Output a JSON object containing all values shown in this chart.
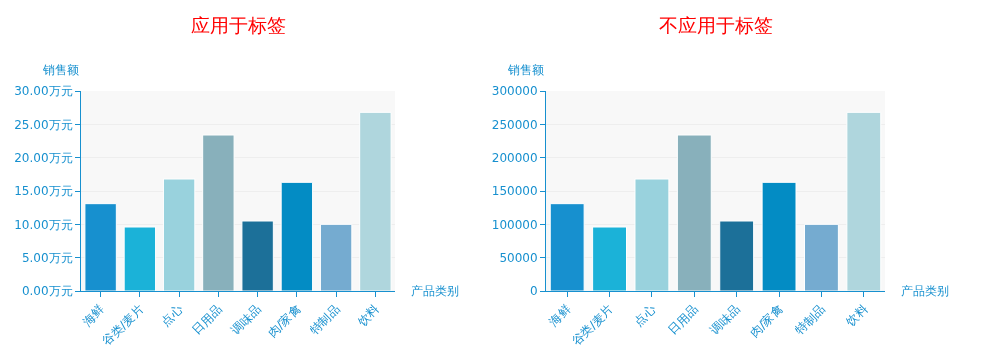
{
  "chart_data": [
    {
      "type": "bar",
      "title": "应用于标签",
      "xlabel": "产品类别",
      "ylabel": "销售额",
      "categories": [
        "海鲜",
        "谷类/麦片",
        "点心",
        "日用品",
        "调味品",
        "肉/家禽",
        "特制品",
        "饮料"
      ],
      "values": [
        13.1,
        9.6,
        16.8,
        23.4,
        10.5,
        16.3,
        10.0,
        26.8
      ],
      "colors": [
        "#1790cf",
        "#1bb2d8",
        "#99d2dd",
        "#88b0bb",
        "#1c7099",
        "#038cc4",
        "#75abd0",
        "#afd6dd"
      ],
      "ylim": [
        0,
        30
      ],
      "yticks": [
        {
          "value": 0,
          "label": "0.00万元"
        },
        {
          "value": 5,
          "label": "5.00万元"
        },
        {
          "value": 10,
          "label": "10.00万元"
        },
        {
          "value": 15,
          "label": "15.00万元"
        },
        {
          "value": 20,
          "label": "20.00万元"
        },
        {
          "value": 25,
          "label": "25.00万元"
        },
        {
          "value": 30,
          "label": "30.00万元"
        }
      ],
      "grid": "y",
      "legend": false
    },
    {
      "type": "bar",
      "title": "不应用于标签",
      "xlabel": "产品类别",
      "ylabel": "销售额",
      "categories": [
        "海鲜",
        "谷类/麦片",
        "点心",
        "日用品",
        "调味品",
        "肉/家禽",
        "特制品",
        "饮料"
      ],
      "values": [
        131000,
        96000,
        168000,
        234000,
        105000,
        163000,
        100000,
        268000
      ],
      "colors": [
        "#1790cf",
        "#1bb2d8",
        "#99d2dd",
        "#88b0bb",
        "#1c7099",
        "#038cc4",
        "#75abd0",
        "#afd6dd"
      ],
      "ylim": [
        0,
        300000
      ],
      "yticks": [
        0,
        50000,
        100000,
        150000,
        200000,
        250000,
        300000
      ],
      "grid": "y",
      "legend": false
    }
  ]
}
